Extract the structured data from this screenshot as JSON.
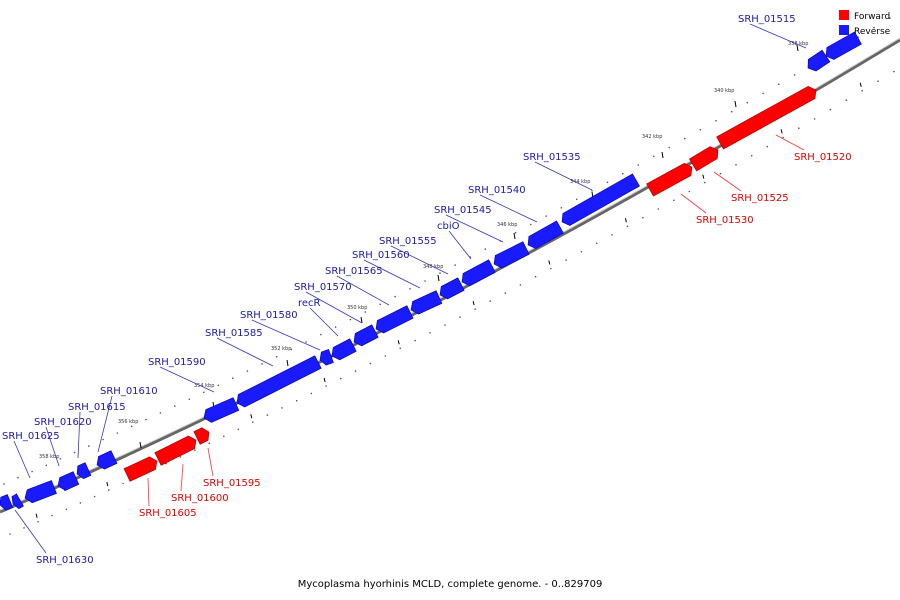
{
  "colors": {
    "forward": "#ff0000",
    "reverse": "#1a1aff",
    "forward_label": "#e00000",
    "reverse_label": "#1a1aaa",
    "backbone": "#888888",
    "tick": "#000000"
  },
  "legend": [
    {
      "label": "Forward",
      "color": "#ff0000"
    },
    {
      "label": "Reverse",
      "color": "#1a1aff"
    }
  ],
  "footer": "Mycoplasma hyorhinis MCLD, complete genome. - 0..829709",
  "position_ticks": [
    "338 kbp",
    "340 kbp",
    "342 kbp",
    "344 kbp",
    "346 kbp",
    "348 kbp",
    "350 kbp",
    "352 kbp",
    "354 kbp",
    "356 kbp",
    "358 kbp"
  ],
  "genes": [
    {
      "label": "SRH_01515",
      "strand": "reverse"
    },
    {
      "label": "SRH_01520",
      "strand": "forward"
    },
    {
      "label": "SRH_01525",
      "strand": "forward"
    },
    {
      "label": "SRH_01530",
      "strand": "forward"
    },
    {
      "label": "SRH_01535",
      "strand": "reverse"
    },
    {
      "label": "SRH_01540",
      "strand": "reverse"
    },
    {
      "label": "SRH_01545",
      "strand": "reverse"
    },
    {
      "label": "cbiO",
      "strand": "reverse"
    },
    {
      "label": "SRH_01555",
      "strand": "reverse"
    },
    {
      "label": "SRH_01560",
      "strand": "reverse"
    },
    {
      "label": "SRH_01565",
      "strand": "reverse"
    },
    {
      "label": "SRH_01570",
      "strand": "reverse"
    },
    {
      "label": "recR",
      "strand": "reverse"
    },
    {
      "label": "SRH_01580",
      "strand": "reverse"
    },
    {
      "label": "SRH_01585",
      "strand": "reverse"
    },
    {
      "label": "SRH_01590",
      "strand": "reverse"
    },
    {
      "label": "SRH_01595",
      "strand": "forward"
    },
    {
      "label": "SRH_01600",
      "strand": "forward"
    },
    {
      "label": "SRH_01605",
      "strand": "forward"
    },
    {
      "label": "SRH_01610",
      "strand": "reverse"
    },
    {
      "label": "SRH_01615",
      "strand": "reverse"
    },
    {
      "label": "SRH_01620",
      "strand": "reverse"
    },
    {
      "label": "SRH_01625",
      "strand": "reverse"
    },
    {
      "label": "SRH_01630",
      "strand": "reverse"
    }
  ]
}
